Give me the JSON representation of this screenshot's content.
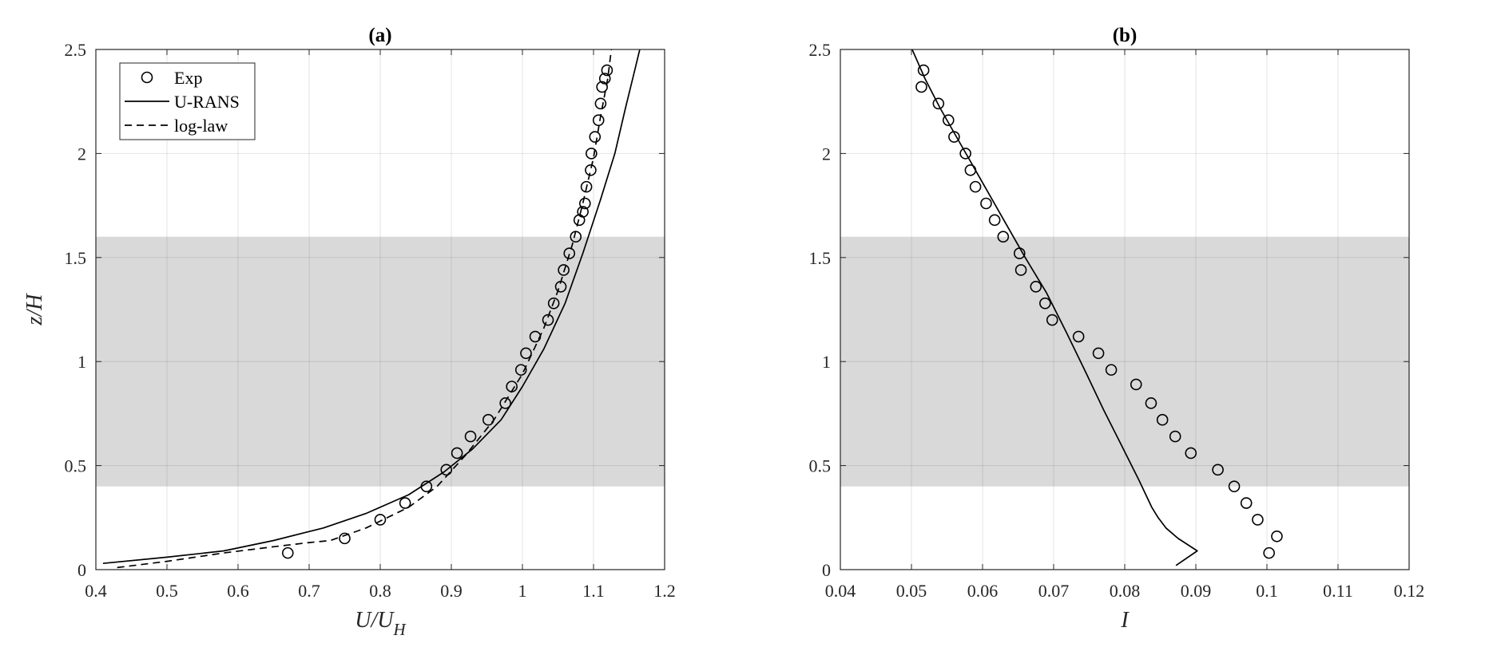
{
  "chart_data": [
    {
      "type": "line",
      "title": "(a)",
      "xlabel_main": "U/U",
      "xlabel_sub": "H",
      "ylabel": "z/H",
      "xlim": [
        0.4,
        1.2
      ],
      "ylim": [
        0,
        2.5
      ],
      "xticks": [
        0.4,
        0.5,
        0.6,
        0.7,
        0.8,
        0.9,
        1,
        1.1,
        1.2
      ],
      "yticks": [
        0,
        0.5,
        1,
        1.5,
        2,
        2.5
      ],
      "xtick_labels": [
        "0.4",
        "0.5",
        "0.6",
        "0.7",
        "0.8",
        "0.9",
        "1",
        "1.1",
        "1.2"
      ],
      "ytick_labels": [
        "0",
        "0.5",
        "1",
        "1.5",
        "2",
        "2.5"
      ],
      "grid": true,
      "shaded_band": [
        0.4,
        1.6
      ],
      "legend": {
        "position": "top-left",
        "entries": [
          {
            "label": "Exp",
            "style": "circle"
          },
          {
            "label": "U-RANS",
            "style": "solid"
          },
          {
            "label": "log-law",
            "style": "dashed"
          }
        ]
      },
      "series": [
        {
          "name": "Exp",
          "style": "circle",
          "x": [
            0.67,
            0.75,
            0.8,
            0.835,
            0.865,
            0.893,
            0.908,
            0.927,
            0.952,
            0.976,
            0.985,
            0.998,
            1.005,
            1.018,
            1.036,
            1.044,
            1.054,
            1.058,
            1.066,
            1.075,
            1.08,
            1.085,
            1.088,
            1.09,
            1.096,
            1.097,
            1.102,
            1.107,
            1.11,
            1.112,
            1.116,
            1.119
          ],
          "y": [
            0.08,
            0.15,
            0.24,
            0.32,
            0.4,
            0.48,
            0.56,
            0.64,
            0.72,
            0.8,
            0.88,
            0.96,
            1.04,
            1.12,
            1.2,
            1.28,
            1.36,
            1.44,
            1.52,
            1.6,
            1.68,
            1.72,
            1.76,
            1.84,
            1.92,
            2.0,
            2.08,
            2.16,
            2.24,
            2.32,
            2.36,
            2.4
          ]
        },
        {
          "name": "U-RANS",
          "style": "solid",
          "x": [
            0.41,
            0.5,
            0.58,
            0.65,
            0.72,
            0.78,
            0.84,
            0.89,
            0.93,
            0.97,
            1.0,
            1.03,
            1.06,
            1.085,
            1.11,
            1.13,
            1.145,
            1.158,
            1.165
          ],
          "y": [
            0.03,
            0.06,
            0.09,
            0.14,
            0.2,
            0.27,
            0.36,
            0.47,
            0.58,
            0.72,
            0.88,
            1.06,
            1.28,
            1.52,
            1.78,
            2.0,
            2.22,
            2.4,
            2.5
          ]
        },
        {
          "name": "log-law",
          "style": "dashed",
          "x": [
            0.43,
            0.5,
            0.58,
            0.65,
            0.7,
            0.73,
            0.78,
            0.84,
            0.88,
            0.92,
            0.96,
            1.0,
            1.03,
            1.05,
            1.07,
            1.085,
            1.1,
            1.11,
            1.12,
            1.125
          ],
          "y": [
            0.01,
            0.04,
            0.08,
            0.11,
            0.13,
            0.14,
            0.2,
            0.3,
            0.4,
            0.55,
            0.72,
            0.94,
            1.16,
            1.34,
            1.56,
            1.76,
            1.98,
            2.18,
            2.36,
            2.5
          ]
        }
      ]
    },
    {
      "type": "line",
      "title": "(b)",
      "xlabel_main": "I",
      "xlabel_sub": "",
      "ylabel": "",
      "xlim": [
        0.04,
        0.12
      ],
      "ylim": [
        0,
        2.5
      ],
      "xticks": [
        0.04,
        0.05,
        0.06,
        0.07,
        0.08,
        0.09,
        0.1,
        0.11,
        0.12
      ],
      "yticks": [
        0,
        0.5,
        1,
        1.5,
        2,
        2.5
      ],
      "xtick_labels": [
        "0.04",
        "0.05",
        "0.06",
        "0.07",
        "0.08",
        "0.09",
        "0.1",
        "0.11",
        "0.12"
      ],
      "ytick_labels": [
        "0",
        "0.5",
        "1",
        "1.5",
        "2",
        "2.5"
      ],
      "grid": true,
      "shaded_band": [
        0.4,
        1.6
      ],
      "series": [
        {
          "name": "Exp",
          "style": "circle",
          "x": [
            0.1003,
            0.1014,
            0.0987,
            0.0971,
            0.0954,
            0.0931,
            0.0893,
            0.0871,
            0.0853,
            0.0837,
            0.0816,
            0.0781,
            0.0763,
            0.0735,
            0.0698,
            0.0688,
            0.0675,
            0.0654,
            0.0652,
            0.0629,
            0.0617,
            0.0605,
            0.059,
            0.0583,
            0.0576,
            0.056,
            0.0552,
            0.0538,
            0.0514,
            0.0517
          ],
          "y": [
            0.08,
            0.16,
            0.24,
            0.32,
            0.4,
            0.48,
            0.56,
            0.64,
            0.72,
            0.8,
            0.89,
            0.96,
            1.04,
            1.12,
            1.2,
            1.28,
            1.36,
            1.44,
            1.52,
            1.6,
            1.68,
            1.76,
            1.84,
            1.92,
            2.0,
            2.08,
            2.16,
            2.24,
            2.32,
            2.4
          ]
        },
        {
          "name": "U-RANS",
          "style": "solid",
          "x": [
            0.0872,
            0.0902,
            0.0875,
            0.0858,
            0.0847,
            0.0838,
            0.082,
            0.0795,
            0.077,
            0.0745,
            0.0718,
            0.069,
            0.066,
            0.063,
            0.06,
            0.057,
            0.054,
            0.0519,
            0.0501
          ],
          "y": [
            0.02,
            0.09,
            0.15,
            0.2,
            0.25,
            0.3,
            0.43,
            0.6,
            0.77,
            0.95,
            1.14,
            1.33,
            1.5,
            1.68,
            1.86,
            2.04,
            2.22,
            2.36,
            2.5
          ]
        }
      ]
    }
  ]
}
